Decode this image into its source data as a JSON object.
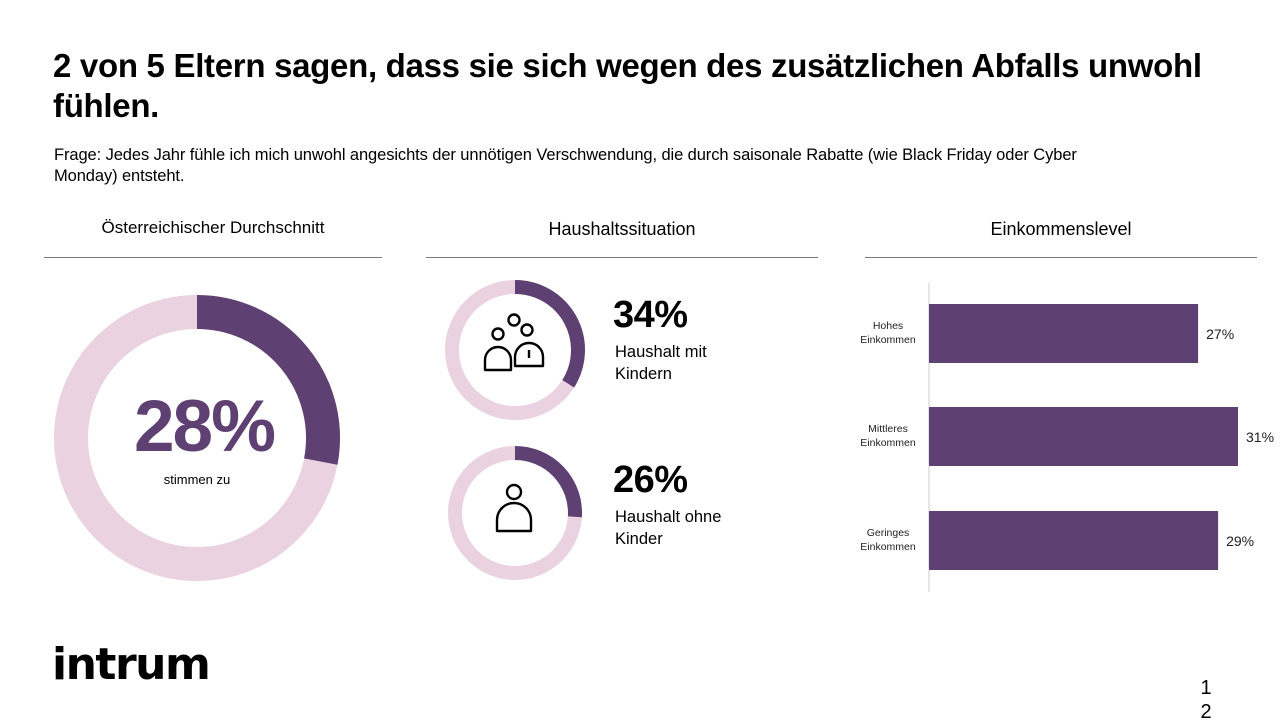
{
  "title": "2 von 5 Eltern sagen, dass sie sich wegen des zusätzlichen Abfalls unwohl fühlen.",
  "subtitle": "Frage: Jedes Jahr fühle ich mich unwohl angesichts der unnötigen Verschwendung, die durch saisonale Rabatte (wie Black Friday oder Cyber Monday) entsteht.",
  "columns": {
    "average": "Österreichischer Durchschnitt",
    "household": "Haushaltssituation",
    "income": "Einkommenslevel"
  },
  "colors": {
    "accent": "#5e4172",
    "track": "#ead2e1",
    "axis": "#cccccc"
  },
  "chart_data": [
    {
      "type": "pie",
      "title": "Österreichischer Durchschnitt",
      "value": 28,
      "value_text": "28%",
      "caption": "stimmen zu",
      "unit": "%"
    },
    {
      "type": "pie",
      "title": "Haushaltssituation",
      "series": [
        {
          "name": "Haushalt mit Kindern",
          "value": 34,
          "value_text": "34%",
          "label_lines": [
            "Haushalt mit",
            "Kindern"
          ],
          "icon": "family-icon"
        },
        {
          "name": "Haushalt ohne Kinder",
          "value": 26,
          "value_text": "26%",
          "label_lines": [
            "Haushalt ohne",
            "Kinder"
          ],
          "icon": "person-icon"
        }
      ],
      "unit": "%"
    },
    {
      "type": "bar",
      "orientation": "horizontal",
      "title": "Einkommenslevel",
      "categories": [
        [
          "Hohes",
          "Einkommen"
        ],
        [
          "Mittleres",
          "Einkommen"
        ],
        [
          "Geringes",
          "Einkommen"
        ]
      ],
      "values": [
        27,
        31,
        29
      ],
      "value_labels": [
        "27%",
        "31%",
        "29%"
      ],
      "unit": "%"
    }
  ],
  "logo": "intrum",
  "page_number": [
    "1",
    "2"
  ]
}
